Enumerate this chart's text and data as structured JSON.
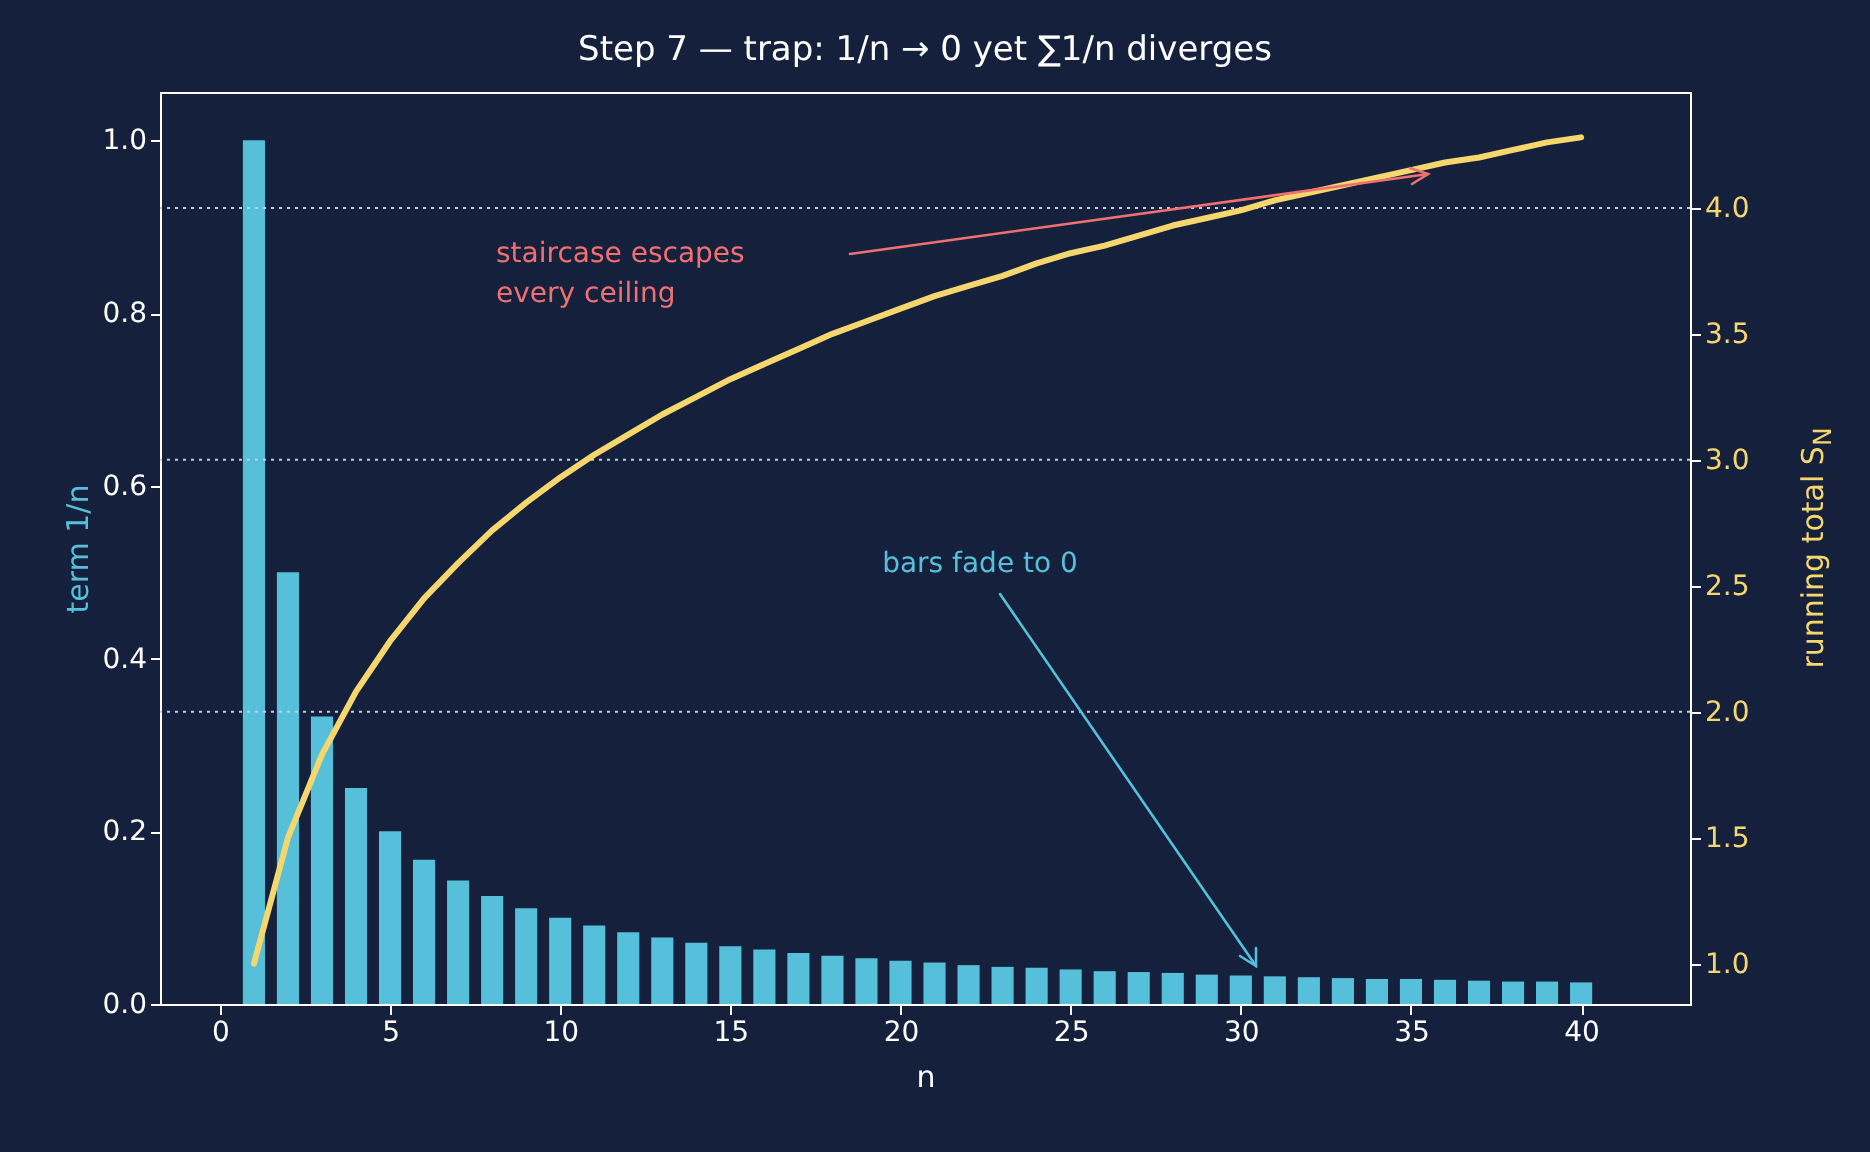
{
  "chart_data": {
    "type": "bar",
    "title": "Step 7 — trap: 1/n → 0 yet ∑1/n diverges",
    "xlabel": "n",
    "ylabel": "term 1/n",
    "y2label": "running total S$_{N}$",
    "x": [
      1,
      2,
      3,
      4,
      5,
      6,
      7,
      8,
      9,
      10,
      11,
      12,
      13,
      14,
      15,
      16,
      17,
      18,
      19,
      20,
      21,
      22,
      23,
      24,
      25,
      26,
      27,
      28,
      29,
      30,
      31,
      32,
      33,
      34,
      35,
      36,
      37,
      38,
      39,
      40
    ],
    "series": [
      {
        "color": "#56c0da",
        "values": [
          1,
          0.5,
          0.333,
          0.25,
          0.2,
          0.167,
          0.143,
          0.125,
          0.111,
          0.1,
          0.091,
          0.083,
          0.077,
          0.071,
          0.067,
          0.063,
          0.059,
          0.056,
          0.053,
          0.05,
          0.048,
          0.045,
          0.043,
          0.042,
          0.04,
          0.038,
          0.037,
          0.036,
          0.034,
          0.033,
          0.032,
          0.031,
          0.03,
          0.029,
          0.029,
          0.028,
          0.027,
          0.026,
          0.026,
          0.025
        ]
      },
      {
        "type": "line",
        "axis": "y2",
        "color": "#f5d76e",
        "values": [
          1,
          1.5,
          1.83,
          2.08,
          2.28,
          2.45,
          2.59,
          2.72,
          2.83,
          2.93,
          3.02,
          3.1,
          3.18,
          3.25,
          3.32,
          3.38,
          3.44,
          3.5,
          3.55,
          3.6,
          3.65,
          3.69,
          3.73,
          3.78,
          3.82,
          3.85,
          3.89,
          3.93,
          3.96,
          3.99,
          4.03,
          4.06,
          4.09,
          4.12,
          4.15,
          4.18,
          4.2,
          4.23,
          4.26,
          4.28
        ]
      }
    ],
    "xlim": [
      -1.76,
      43.2
    ],
    "xticks": [
      0,
      5,
      10,
      15,
      20,
      25,
      30,
      35,
      40
    ],
    "ylim": [
      0,
      1.056
    ],
    "yticks": [
      {
        "value": 0,
        "label": "0.0"
      },
      {
        "value": 0.2,
        "label": "0.2"
      },
      {
        "value": 0.4,
        "label": "0.4"
      },
      {
        "value": 0.6,
        "label": "0.6"
      },
      {
        "value": 0.8,
        "label": "0.8"
      },
      {
        "value": 1,
        "label": "1.0"
      }
    ],
    "y2lim": [
      0.84,
      4.46
    ],
    "y2ticks": [
      {
        "value": 1,
        "label": "1.0"
      },
      1.5,
      {
        "value": 2,
        "label": "2.0"
      },
      2.5,
      {
        "value": 3,
        "label": "3.0"
      },
      3.5,
      {
        "value": 4,
        "label": "4.0"
      }
    ],
    "ref_lines": [
      {
        "axis": "y2",
        "value": 4,
        "color": "#c8ccd6",
        "line_style": "dotted"
      },
      {
        "axis": "y2",
        "value": 3,
        "color": "#c8ccd6",
        "line_style": "dotted"
      },
      {
        "axis": "y2",
        "value": 2,
        "color": "#c8ccd6",
        "line_style": "dotted"
      }
    ],
    "annotations": [
      "staircase escapes\nevery ceiling",
      "bars fade to 0"
    ],
    "grid": false
  }
}
